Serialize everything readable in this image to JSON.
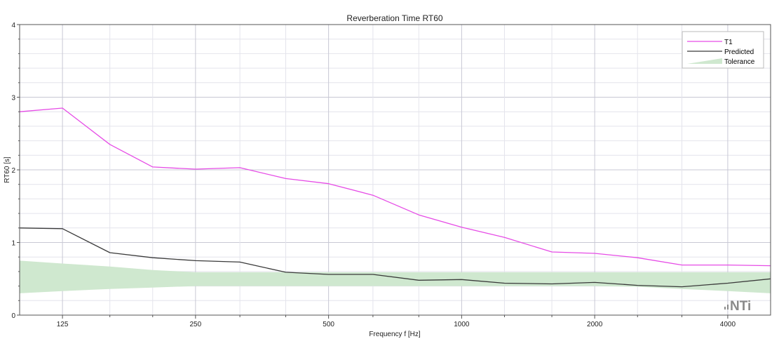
{
  "chart_data": {
    "type": "line",
    "title": "Reverberation Time RT60",
    "xlabel": "Frequency f [Hz]",
    "ylabel": "RT60 [s]",
    "x_scale": "log",
    "x_unit": "Hz",
    "xlim": [
      100,
      5000
    ],
    "x_tick_values": [
      125,
      250,
      500,
      1000,
      2000,
      4000
    ],
    "x_tick_labels": [
      "125",
      "250",
      "500",
      "1000",
      "2000",
      "4000"
    ],
    "ylim": [
      0,
      4
    ],
    "y_tick_values": [
      0,
      1,
      2,
      3,
      4
    ],
    "y_tick_labels": [
      "0",
      "1",
      "2",
      "3",
      "4"
    ],
    "grid": true,
    "legend_position": "top-right",
    "x": [
      100,
      125,
      160,
      200,
      250,
      315,
      400,
      500,
      630,
      800,
      1000,
      1250,
      1600,
      2000,
      2500,
      3150,
      4000,
      5000
    ],
    "series": [
      {
        "name": "T1",
        "color": "#e64ce6",
        "values": [
          2.8,
          2.85,
          2.35,
          2.04,
          2.01,
          2.03,
          1.88,
          1.81,
          1.65,
          1.38,
          1.21,
          1.07,
          0.87,
          0.85,
          0.79,
          0.69,
          0.69,
          0.68
        ]
      },
      {
        "name": "Predicted",
        "color": "#3a3a3a",
        "values": [
          1.2,
          1.19,
          0.86,
          0.79,
          0.75,
          0.73,
          0.59,
          0.56,
          0.56,
          0.48,
          0.49,
          0.44,
          0.43,
          0.45,
          0.41,
          0.39,
          0.44,
          0.5
        ]
      }
    ],
    "tolerance": {
      "name": "Tolerance",
      "color": "#cfe8cf",
      "lower": [
        0.3,
        0.33,
        0.36,
        0.38,
        0.4,
        0.4,
        0.4,
        0.4,
        0.4,
        0.4,
        0.4,
        0.4,
        0.4,
        0.4,
        0.39,
        0.36,
        0.33,
        0.3
      ],
      "upper": [
        0.75,
        0.71,
        0.67,
        0.62,
        0.59,
        0.59,
        0.59,
        0.59,
        0.59,
        0.59,
        0.59,
        0.59,
        0.59,
        0.59,
        0.59,
        0.59,
        0.59,
        0.59
      ]
    }
  },
  "logo": {
    "text": "NTi",
    "color": "#8a8a8a"
  }
}
